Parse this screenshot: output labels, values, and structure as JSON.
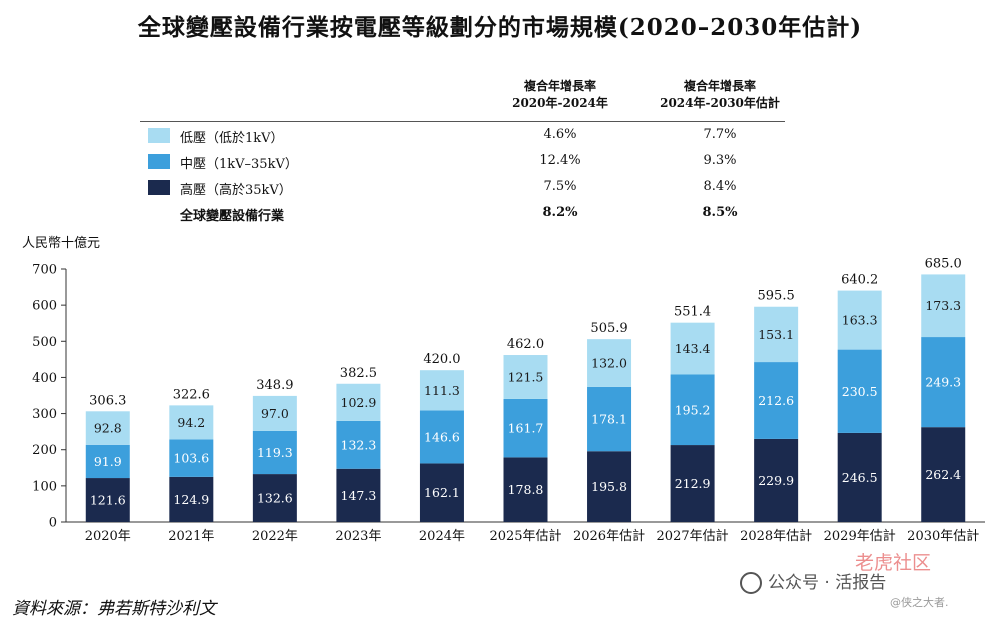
{
  "title": "全球變壓設備行業按電壓等級劃分的市場規模(2020–2030年估計)",
  "cagr_table": {
    "col1": [
      "複合年增長率",
      "2020年-2024年"
    ],
    "col2": [
      "複合年增長率",
      "2024年-2030年估計"
    ],
    "rows": [
      {
        "label": "低壓（低於1kV）",
        "v1": "4.6%",
        "v2": "7.7%",
        "color": "#a8dcf2"
      },
      {
        "label": "中壓（1kV–35kV）",
        "v1": "12.4%",
        "v2": "9.3%",
        "color": "#3c9fdc"
      },
      {
        "label": "高壓（高於35kV）",
        "v1": "7.5%",
        "v2": "8.4%",
        "color": "#1b2a4e"
      }
    ],
    "total": {
      "label": "全球變壓設備行業",
      "v1": "8.2%",
      "v2": "8.5%"
    }
  },
  "unit": "人民幣十億元",
  "source": "資料來源：弗若斯特沙利文",
  "watermark": {
    "wechat": "公众号 · 活报告",
    "site": "老虎社区",
    "user": "@侠之大者."
  },
  "chart_data": {
    "type": "bar",
    "stacked": true,
    "categories": [
      "2020年",
      "2021年",
      "2022年",
      "2023年",
      "2024年",
      "2025年估計",
      "2026年估計",
      "2027年估計",
      "2028年估計",
      "2029年估計",
      "2030年估計"
    ],
    "series": [
      {
        "name": "高壓（高於35kV）",
        "color": "#1b2a4e",
        "label_color": "#ffffff",
        "values": [
          121.6,
          124.9,
          132.6,
          147.3,
          162.1,
          178.8,
          195.8,
          212.9,
          229.9,
          246.5,
          262.4
        ]
      },
      {
        "name": "中壓（1kV–35kV）",
        "color": "#3c9fdc",
        "label_color": "#ffffff",
        "values": [
          91.9,
          103.6,
          119.3,
          132.3,
          146.6,
          161.7,
          178.1,
          195.2,
          212.6,
          230.5,
          249.3
        ]
      },
      {
        "name": "低壓（低於1kV）",
        "color": "#a8dcf2",
        "label_color": "#1a1a1a",
        "values": [
          92.8,
          94.2,
          97.0,
          102.9,
          111.3,
          121.5,
          132.0,
          143.4,
          153.1,
          163.3,
          173.3
        ]
      }
    ],
    "totals": [
      "306.3",
      "322.6",
      "348.9",
      "382.5",
      "420.0",
      "462.0",
      "505.9",
      "551.4",
      "595.5",
      "640.2",
      "685.0"
    ],
    "segment_labels": [
      [
        "121.6",
        "124.9",
        "132.6",
        "147.3",
        "162.1",
        "178.8",
        "195.8",
        "212.9",
        "229.9",
        "246.5",
        "262.4"
      ],
      [
        "91.9",
        "103.6",
        "119.3",
        "132.3",
        "146.6",
        "161.7",
        "178.1",
        "195.2",
        "212.6",
        "230.5",
        "249.3"
      ],
      [
        "92.8",
        "94.2",
        "97.0",
        "102.9",
        "111.3",
        "121.5",
        "132.0",
        "143.4",
        "153.1",
        "163.3",
        "173.3"
      ]
    ],
    "ylabel": "人民幣十億元",
    "ylim": [
      0,
      700
    ],
    "yticks": [
      0,
      100,
      200,
      300,
      400,
      500,
      600,
      700
    ]
  }
}
